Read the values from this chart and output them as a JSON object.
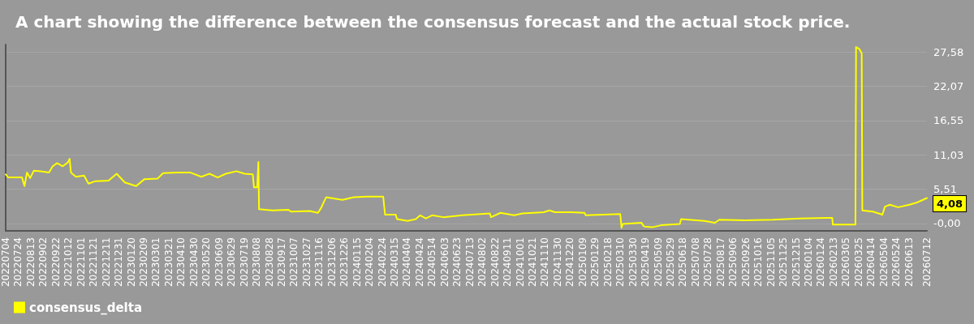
{
  "chart_data": {
    "type": "line",
    "title": "A chart showing the difference between the consensus forecast and the actual stock price.",
    "x": [
      "2022-07-04",
      "2022-07-08",
      "2022-07-30",
      "2022-08-03",
      "2022-08-07",
      "2022-08-12",
      "2022-08-18",
      "2022-08-29",
      "2022-09-11",
      "2022-09-17",
      "2022-09-24",
      "2022-10-03",
      "2022-10-11",
      "2022-10-14",
      "2022-10-16",
      "2022-10-24",
      "2022-11-06",
      "2022-11-13",
      "2022-11-24",
      "2022-12-15",
      "2022-12-28",
      "2023-01-10",
      "2023-01-28",
      "2023-02-10",
      "2023-03-03",
      "2023-03-12",
      "2023-04-03",
      "2023-04-24",
      "2023-05-12",
      "2023-05-25",
      "2023-06-07",
      "2023-06-20",
      "2023-07-07",
      "2023-07-20",
      "2023-08-02",
      "2023-08-04",
      "2023-08-09",
      "2023-08-11",
      "2023-08-12",
      "2023-09-02",
      "2023-09-28",
      "2023-10-02",
      "2023-11-01",
      "2023-11-14",
      "2023-11-19",
      "2023-11-25",
      "2023-11-27",
      "2023-12-23",
      "2024-01-10",
      "2024-01-31",
      "2024-02-26",
      "2024-02-29",
      "2024-03-17",
      "2024-03-19",
      "2024-04-05",
      "2024-04-18",
      "2024-04-25",
      "2024-05-04",
      "2024-05-14",
      "2024-06-01",
      "2024-07-01",
      "2024-08-14",
      "2024-08-16",
      "2024-08-31",
      "2024-09-22",
      "2024-10-05",
      "2024-11-08",
      "2024-11-17",
      "2024-11-26",
      "2024-12-22",
      "2025-01-12",
      "2025-01-14",
      "2025-03-10",
      "2025-03-12",
      "2025-03-14",
      "2025-04-13",
      "2025-04-16",
      "2025-04-18",
      "2025-05-01",
      "2025-05-14",
      "2025-06-13",
      "2025-06-15",
      "2025-07-22",
      "2025-08-08",
      "2025-08-15",
      "2025-09-25",
      "2025-11-08",
      "2025-12-21",
      "2026-02-11",
      "2026-02-12",
      "2026-03-20",
      "2026-03-21",
      "2026-03-26",
      "2026-03-30",
      "2026-03-31",
      "2026-04-08",
      "2026-04-17",
      "2026-05-02",
      "2026-05-06",
      "2026-05-14",
      "2026-05-27",
      "2026-06-14",
      "2026-06-27",
      "2026-07-12"
    ],
    "series": [
      {
        "name": "consensus_delta",
        "color": "#ffff00",
        "values": [
          7.9,
          7.4,
          7.4,
          6.0,
          8.2,
          7.3,
          8.5,
          8.4,
          8.2,
          9.2,
          9.7,
          9.2,
          9.8,
          10.4,
          8.2,
          7.5,
          7.7,
          6.4,
          6.8,
          6.9,
          8.0,
          6.6,
          6.0,
          7.1,
          7.2,
          8.1,
          8.2,
          8.2,
          7.5,
          8.0,
          7.4,
          8.0,
          8.4,
          8.0,
          7.9,
          5.8,
          5.8,
          9.9,
          2.3,
          2.1,
          2.2,
          1.9,
          2.0,
          1.7,
          2.5,
          3.8,
          4.2,
          3.8,
          4.2,
          4.3,
          4.3,
          1.4,
          1.4,
          0.7,
          0.4,
          0.7,
          1.3,
          0.8,
          1.3,
          1.0,
          1.3,
          1.6,
          1.0,
          1.7,
          1.3,
          1.6,
          1.8,
          2.1,
          1.8,
          1.8,
          1.7,
          1.3,
          1.5,
          -0.7,
          -0.1,
          0.1,
          -0.4,
          -0.5,
          -0.6,
          -0.3,
          -0.1,
          0.7,
          0.4,
          0.1,
          0.6,
          0.5,
          0.6,
          0.8,
          0.9,
          -0.2,
          -0.2,
          28.4,
          28.1,
          27.4,
          2.1,
          2.0,
          1.9,
          1.4,
          2.7,
          3.0,
          2.6,
          3.0,
          3.4,
          4.08
        ],
        "value_labels": [
          null,
          null,
          null,
          null,
          null,
          null,
          null,
          null,
          null,
          null,
          null,
          null,
          null,
          null,
          null,
          null,
          null,
          null,
          null,
          null,
          null,
          null,
          null,
          null,
          null,
          null,
          null,
          null,
          null,
          null,
          null,
          null,
          null,
          null,
          null,
          null,
          null,
          null,
          null,
          null,
          null,
          null,
          null,
          null,
          null,
          null,
          null,
          null,
          null,
          null,
          null,
          null,
          null,
          null,
          null,
          null,
          null,
          null,
          null,
          null,
          null,
          null,
          null,
          null,
          null,
          null,
          null,
          null,
          null,
          null,
          null,
          null,
          null,
          null,
          null,
          null,
          null,
          null,
          null,
          null,
          null,
          null,
          null,
          null,
          null,
          null,
          null,
          null,
          null,
          null,
          null,
          null,
          null,
          null,
          null,
          null,
          null,
          null,
          null,
          null,
          null,
          null,
          null,
          "4,08"
        ]
      }
    ],
    "xlim": [
      "2022-07-04",
      "2026-07-12"
    ],
    "xticks": [
      {
        "value": "2022-07-04",
        "label": "20220704"
      },
      {
        "value": "2022-07-24",
        "label": "20220724"
      },
      {
        "value": "2022-08-13",
        "label": "20220813"
      },
      {
        "value": "2022-09-02",
        "label": "20220902"
      },
      {
        "value": "2022-09-22",
        "label": "20220922"
      },
      {
        "value": "2022-10-12",
        "label": "20221012"
      },
      {
        "value": "2022-11-01",
        "label": "20221101"
      },
      {
        "value": "2022-11-21",
        "label": "20221121"
      },
      {
        "value": "2022-12-11",
        "label": "20221211"
      },
      {
        "value": "2022-12-31",
        "label": "20221231"
      },
      {
        "value": "2023-01-20",
        "label": "20230120"
      },
      {
        "value": "2023-02-09",
        "label": "20230209"
      },
      {
        "value": "2023-03-01",
        "label": "20230301"
      },
      {
        "value": "2023-03-21",
        "label": "20230321"
      },
      {
        "value": "2023-04-10",
        "label": "20230410"
      },
      {
        "value": "2023-04-30",
        "label": "20230430"
      },
      {
        "value": "2023-05-20",
        "label": "20230520"
      },
      {
        "value": "2023-06-09",
        "label": "20230609"
      },
      {
        "value": "2023-06-29",
        "label": "20230629"
      },
      {
        "value": "2023-07-19",
        "label": "20230719"
      },
      {
        "value": "2023-08-08",
        "label": "20230808"
      },
      {
        "value": "2023-08-28",
        "label": "20230828"
      },
      {
        "value": "2023-09-17",
        "label": "20230917"
      },
      {
        "value": "2023-10-07",
        "label": "20231007"
      },
      {
        "value": "2023-10-27",
        "label": "20231027"
      },
      {
        "value": "2023-11-16",
        "label": "20231116"
      },
      {
        "value": "2023-12-06",
        "label": "20231206"
      },
      {
        "value": "2023-12-26",
        "label": "20231226"
      },
      {
        "value": "2024-01-15",
        "label": "20240115"
      },
      {
        "value": "2024-02-04",
        "label": "20240204"
      },
      {
        "value": "2024-02-24",
        "label": "20240224"
      },
      {
        "value": "2024-03-15",
        "label": "20240315"
      },
      {
        "value": "2024-04-04",
        "label": "20240404"
      },
      {
        "value": "2024-04-24",
        "label": "20240424"
      },
      {
        "value": "2024-05-14",
        "label": "20240514"
      },
      {
        "value": "2024-06-03",
        "label": "20240603"
      },
      {
        "value": "2024-06-23",
        "label": "20240623"
      },
      {
        "value": "2024-07-13",
        "label": "20240713"
      },
      {
        "value": "2024-08-02",
        "label": "20240802"
      },
      {
        "value": "2024-08-22",
        "label": "20240822"
      },
      {
        "value": "2024-09-11",
        "label": "20240911"
      },
      {
        "value": "2024-10-01",
        "label": "20241001"
      },
      {
        "value": "2024-10-21",
        "label": "20241021"
      },
      {
        "value": "2024-11-10",
        "label": "20241110"
      },
      {
        "value": "2024-11-30",
        "label": "20241130"
      },
      {
        "value": "2024-12-20",
        "label": "20241220"
      },
      {
        "value": "2025-01-09",
        "label": "20250109"
      },
      {
        "value": "2025-01-29",
        "label": "20250129"
      },
      {
        "value": "2025-02-18",
        "label": "20250218"
      },
      {
        "value": "2025-03-10",
        "label": "20250310"
      },
      {
        "value": "2025-03-30",
        "label": "20250330"
      },
      {
        "value": "2025-04-19",
        "label": "20250419"
      },
      {
        "value": "2025-05-09",
        "label": "20250509"
      },
      {
        "value": "2025-05-29",
        "label": "20250529"
      },
      {
        "value": "2025-06-18",
        "label": "20250618"
      },
      {
        "value": "2025-07-08",
        "label": "20250708"
      },
      {
        "value": "2025-07-28",
        "label": "20250728"
      },
      {
        "value": "2025-08-17",
        "label": "20250817"
      },
      {
        "value": "2025-09-06",
        "label": "20250906"
      },
      {
        "value": "2025-09-26",
        "label": "20250926"
      },
      {
        "value": "2025-10-16",
        "label": "20251016"
      },
      {
        "value": "2025-11-05",
        "label": "20251105"
      },
      {
        "value": "2025-11-25",
        "label": "20251125"
      },
      {
        "value": "2025-12-15",
        "label": "20251215"
      },
      {
        "value": "2026-01-04",
        "label": "20260104"
      },
      {
        "value": "2026-01-24",
        "label": "20260124"
      },
      {
        "value": "2026-02-13",
        "label": "20260213"
      },
      {
        "value": "2026-03-05",
        "label": "20260305"
      },
      {
        "value": "2026-03-25",
        "label": "20260325"
      },
      {
        "value": "2026-04-14",
        "label": "20260414"
      },
      {
        "value": "2026-05-04",
        "label": "20260504"
      },
      {
        "value": "2026-05-24",
        "label": "20260524"
      },
      {
        "value": "2026-06-13",
        "label": "20260613"
      },
      {
        "value": "2026-07-12",
        "label": "20260712"
      }
    ],
    "ylim": [
      -1.2,
      28.8
    ],
    "yticks": [
      {
        "value": 0,
        "label": "-0,00"
      },
      {
        "value": 5.51,
        "label": "5,51"
      },
      {
        "value": 11.03,
        "label": "11,03"
      },
      {
        "value": 16.55,
        "label": "16,55"
      },
      {
        "value": 22.07,
        "label": "22,07"
      },
      {
        "value": 27.58,
        "label": "27,58"
      }
    ],
    "grid": "y",
    "legend": "bottom left",
    "marker": "none",
    "line_style": "solid"
  }
}
